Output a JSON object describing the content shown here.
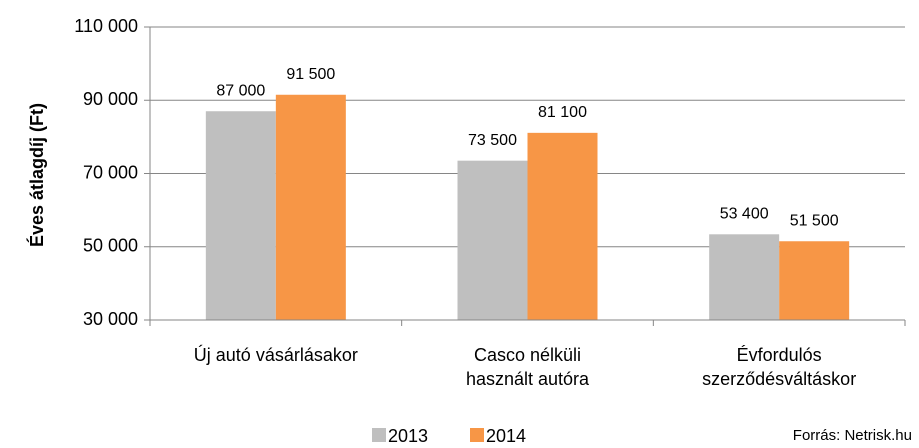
{
  "chart_data": {
    "type": "bar",
    "y_axis_label": "Éves átlagdíj (Ft)",
    "source": "Forrás: Netrisk.hu",
    "categories": [
      "Új autó vásárlásakor",
      "Casco nélküli\nhasznált autóra",
      "Évfordulós\nszerződésváltáskor"
    ],
    "series": [
      {
        "name": "2013",
        "color": "#bfbfbf",
        "values": [
          87000,
          73500,
          53400
        ],
        "value_labels": [
          "87 000",
          "73 500",
          "53 400"
        ]
      },
      {
        "name": "2014",
        "color": "#f79646",
        "values": [
          91500,
          81100,
          51500
        ],
        "value_labels": [
          "91 500",
          "81 100",
          "51 500"
        ]
      }
    ],
    "ylim": [
      30000,
      110000
    ],
    "yticks": [
      {
        "value": 30000,
        "label": "30 000"
      },
      {
        "value": 50000,
        "label": "50 000"
      },
      {
        "value": 70000,
        "label": "70 000"
      },
      {
        "value": 90000,
        "label": "90 000"
      },
      {
        "value": 110000,
        "label": "110 000"
      }
    ],
    "grid": true,
    "legend": "bottom"
  }
}
